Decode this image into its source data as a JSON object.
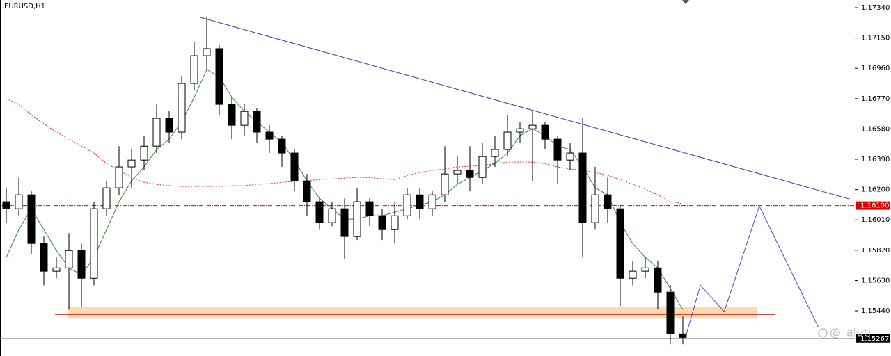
{
  "chart_data": {
    "type": "candlestick",
    "title": "EURUSD,H1",
    "watermark": "@_aluti",
    "bull_color": "#ffffff",
    "bear_color": "#000000",
    "ylim": [
      1.15157,
      1.17388
    ],
    "yticks": [
      {
        "value": 1.1734,
        "label": "1.17340"
      },
      {
        "value": 1.1715,
        "label": "1.17150"
      },
      {
        "value": 1.1696,
        "label": "1.16960"
      },
      {
        "value": 1.1677,
        "label": "1.16770"
      },
      {
        "value": 1.1658,
        "label": "1.16580"
      },
      {
        "value": 1.1639,
        "label": "1.16390"
      },
      {
        "value": 1.162,
        "label": "1.16200"
      },
      {
        "value": 1.1601,
        "label": "1.16010"
      },
      {
        "value": 1.1582,
        "label": "1.15820"
      },
      {
        "value": 1.1563,
        "label": "1.15630"
      },
      {
        "value": 1.1544,
        "label": "1.15440"
      }
    ],
    "candles": [
      [
        1.16124,
        1.16211,
        1.15993,
        1.1608
      ],
      [
        1.1608,
        1.16276,
        1.16036,
        1.16167
      ],
      [
        1.16167,
        1.16189,
        1.15797,
        1.15862
      ],
      [
        1.15862,
        1.15906,
        1.156,
        1.15688
      ],
      [
        1.15688,
        1.15775,
        1.15644,
        1.15709
      ],
      [
        1.15709,
        1.15927,
        1.15448,
        1.15818
      ],
      [
        1.15818,
        1.15862,
        1.15461,
        1.15644
      ],
      [
        1.15644,
        1.16124,
        1.156,
        1.1608
      ],
      [
        1.1608,
        1.16254,
        1.16036,
        1.16211
      ],
      [
        1.16211,
        1.16472,
        1.16167,
        1.16342
      ],
      [
        1.16342,
        1.16451,
        1.16211,
        1.16385
      ],
      [
        1.16385,
        1.16538,
        1.1632,
        1.16472
      ],
      [
        1.16472,
        1.16734,
        1.16429,
        1.16647
      ],
      [
        1.16647,
        1.1669,
        1.16494,
        1.1656
      ],
      [
        1.1656,
        1.16908,
        1.16516,
        1.16865
      ],
      [
        1.16865,
        1.17126,
        1.16821,
        1.17039
      ],
      [
        1.17039,
        1.17279,
        1.16952,
        1.17083
      ],
      [
        1.17083,
        1.17105,
        1.16669,
        1.16734
      ],
      [
        1.16734,
        1.16778,
        1.16516,
        1.16603
      ],
      [
        1.16603,
        1.16734,
        1.16538,
        1.1669
      ],
      [
        1.1669,
        1.16712,
        1.16494,
        1.1656
      ],
      [
        1.1656,
        1.16603,
        1.16429,
        1.16516
      ],
      [
        1.16516,
        1.16538,
        1.16342,
        1.16429
      ],
      [
        1.16429,
        1.16451,
        1.16189,
        1.16254
      ],
      [
        1.16254,
        1.16298,
        1.16036,
        1.16124
      ],
      [
        1.16124,
        1.16145,
        1.15949,
        1.15993
      ],
      [
        1.15993,
        1.16124,
        1.15971,
        1.1608
      ],
      [
        1.1608,
        1.16145,
        1.15766,
        1.15906
      ],
      [
        1.15906,
        1.16211,
        1.15884,
        1.16124
      ],
      [
        1.16124,
        1.16145,
        1.15971,
        1.16036
      ],
      [
        1.16036,
        1.1608,
        1.15884,
        1.15949
      ],
      [
        1.15949,
        1.16124,
        1.15862,
        1.16036
      ],
      [
        1.16036,
        1.16211,
        1.16015,
        1.16167
      ],
      [
        1.16167,
        1.16211,
        1.16015,
        1.1608
      ],
      [
        1.1608,
        1.16189,
        1.16036,
        1.16167
      ],
      [
        1.16167,
        1.16472,
        1.16124,
        1.16298
      ],
      [
        1.16298,
        1.16407,
        1.16233,
        1.1632
      ],
      [
        1.1632,
        1.16472,
        1.16189,
        1.16276
      ],
      [
        1.16276,
        1.16494,
        1.16233,
        1.16407
      ],
      [
        1.16407,
        1.16538,
        1.16342,
        1.16451
      ],
      [
        1.16451,
        1.16669,
        1.16407,
        1.1656
      ],
      [
        1.1656,
        1.16625,
        1.16494,
        1.16581
      ],
      [
        1.16581,
        1.1669,
        1.16254,
        1.16603
      ],
      [
        1.16603,
        1.16625,
        1.16451,
        1.16516
      ],
      [
        1.16516,
        1.16538,
        1.16233,
        1.16385
      ],
      [
        1.16385,
        1.16494,
        1.1632,
        1.16429
      ],
      [
        1.16429,
        1.16647,
        1.15775,
        1.15993
      ],
      [
        1.15993,
        1.16342,
        1.15949,
        1.16167
      ],
      [
        1.16167,
        1.16276,
        1.15993,
        1.1608
      ],
      [
        1.1608,
        1.16102,
        1.1547,
        1.15644
      ],
      [
        1.15644,
        1.15753,
        1.156,
        1.15688
      ],
      [
        1.15688,
        1.15775,
        1.15644,
        1.15709
      ],
      [
        1.15709,
        1.15753,
        1.15448,
        1.15557
      ],
      [
        1.15557,
        1.156,
        1.1523,
        1.15295
      ],
      [
        1.15295,
        1.15404,
        1.1523,
        1.15273
      ]
    ],
    "series": [
      {
        "color": "#2e8b2e",
        "style": "solid",
        "values": [
          1.15775,
          1.15949,
          1.1608,
          1.15949,
          1.15818,
          1.15709,
          1.15666,
          1.15775,
          1.15949,
          1.16124,
          1.16254,
          1.16342,
          1.16451,
          1.16516,
          1.16625,
          1.16778,
          1.16952,
          1.16908,
          1.16778,
          1.1669,
          1.16625,
          1.1656,
          1.16494,
          1.16385,
          1.16254,
          1.16145,
          1.1608,
          1.16015,
          1.16015,
          1.16036,
          1.16036,
          1.16058,
          1.1608,
          1.16102,
          1.16124,
          1.16167,
          1.16233,
          1.16276,
          1.1632,
          1.16363,
          1.16429,
          1.16538,
          1.16581,
          1.16538,
          1.16472,
          1.16451,
          1.16342,
          1.16211,
          1.16167,
          1.15993,
          1.15862,
          1.15775,
          1.15709,
          1.15579,
          1.15448
        ]
      },
      {
        "color": "#d03030",
        "style": "dotted",
        "values": [
          1.16769,
          1.16734,
          1.16669,
          1.16612,
          1.1656,
          1.16516,
          1.16472,
          1.16429,
          1.16363,
          1.1632,
          1.16276,
          1.16246,
          1.16233,
          1.16224,
          1.1622,
          1.1622,
          1.1622,
          1.1622,
          1.16224,
          1.16224,
          1.16233,
          1.16237,
          1.16246,
          1.1625,
          1.16254,
          1.16263,
          1.16267,
          1.16272,
          1.16276,
          1.16276,
          1.16267,
          1.16263,
          1.16289,
          1.16307,
          1.1632,
          1.16329,
          1.16342,
          1.16346,
          1.1635,
          1.16363,
          1.16372,
          1.16372,
          1.16372,
          1.16363,
          1.16342,
          1.16329,
          1.1632,
          1.16307,
          1.16289,
          1.16263,
          1.16233,
          1.16202,
          1.16167,
          1.16124,
          1.16111
        ]
      }
    ],
    "lines": [
      {
        "color": "#3838a8",
        "x": [
          15.5,
          67.3
        ],
        "y": [
          1.17279,
          1.16141
        ]
      },
      {
        "color": "#4848c8",
        "x": [
          54.2,
          55.4,
          57.3,
          60.1,
          64.8
        ],
        "y": [
          1.15273,
          1.156,
          1.15435,
          1.16097,
          1.15339
        ]
      }
    ],
    "zone": {
      "color": "#fcd9b0",
      "x": [
        4.9,
        59.9
      ],
      "y": [
        1.15391,
        1.15465
      ]
    },
    "support": {
      "color": "#c83020",
      "x": [
        3.9,
        61.4
      ],
      "y": 1.15417
    },
    "levels": [
      {
        "value": 1.161,
        "label": "1.16100",
        "color": "#e00000",
        "style": "dashdot"
      },
      {
        "value": 1.15267,
        "label": "1.15267",
        "color": "#000000",
        "style": "solid"
      }
    ]
  }
}
